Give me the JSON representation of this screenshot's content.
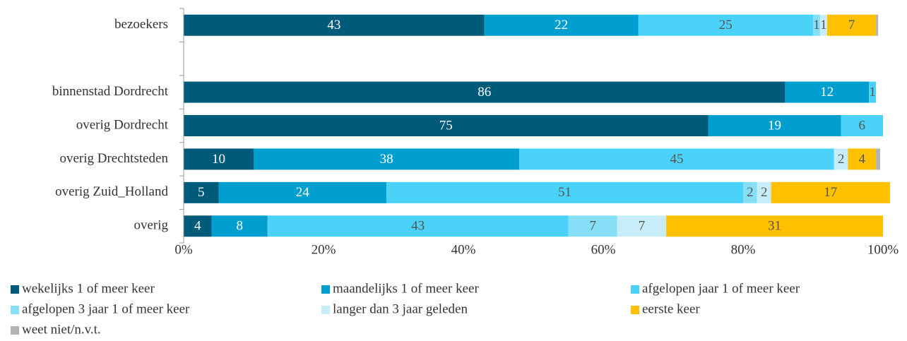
{
  "chart_data": {
    "type": "stacked_bar_horizontal",
    "categories": [
      "bezoekers",
      null,
      "binnenstad Dordrecht",
      "overig Dordrecht",
      "overig Drechtsteden",
      "overig Zuid_Holland",
      "overig"
    ],
    "series": [
      {
        "name": "wekelijks 1 of meer keer",
        "color": "#005b7b",
        "values": [
          43,
          null,
          86,
          75,
          10,
          5,
          4
        ]
      },
      {
        "name": "maandelijks 1 of meer keer",
        "color": "#009fcf",
        "values": [
          22,
          null,
          12,
          19,
          38,
          24,
          8
        ]
      },
      {
        "name": "afgelopen jaar 1 of meer keer",
        "color": "#4ad2f8",
        "values": [
          25,
          null,
          1,
          6,
          45,
          51,
          43
        ]
      },
      {
        "name": "afgelopen 3 jaar 1 of meer keer",
        "color": "#86dff7",
        "values": [
          1,
          null,
          0,
          0,
          0,
          2,
          7
        ]
      },
      {
        "name": "langer dan 3 jaar geleden",
        "color": "#c9edf8",
        "values": [
          1,
          null,
          0,
          0,
          2,
          2,
          7
        ]
      },
      {
        "name": "eerste keer",
        "color": "#ffc000",
        "values": [
          7,
          null,
          0,
          0,
          4,
          17,
          31
        ]
      },
      {
        "name": "weet niet/n.v.t.",
        "color": "#b3b3b3",
        "values": [
          0.3,
          null,
          0,
          0,
          0.6,
          0,
          0
        ]
      }
    ],
    "xlim": [
      0,
      100
    ],
    "xticks": [
      {
        "value": 0,
        "label": "0%"
      },
      {
        "value": 20,
        "label": "20%"
      },
      {
        "value": 40,
        "label": "40%"
      },
      {
        "value": 60,
        "label": "60%"
      },
      {
        "value": 80,
        "label": "80%"
      },
      {
        "value": 100,
        "label": "100%"
      }
    ],
    "legend": "bottom"
  }
}
